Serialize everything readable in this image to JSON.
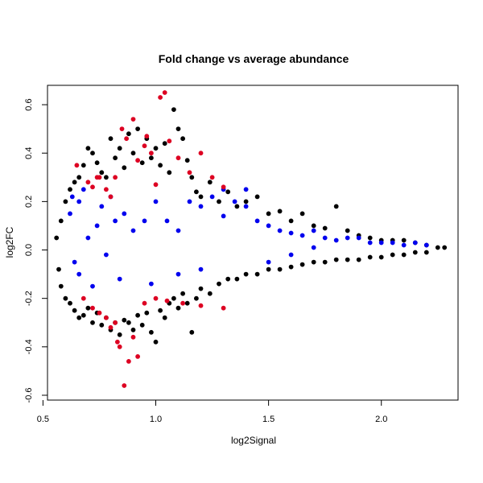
{
  "chart_data": {
    "type": "scatter",
    "title": "Fold change vs average abundance",
    "xlabel": "log2Signal",
    "ylabel": "log2FC",
    "xlim": [
      0.52,
      2.34
    ],
    "ylim": [
      -0.62,
      0.68
    ],
    "x_ticks": [
      0.5,
      1.0,
      1.5,
      2.0
    ],
    "x_tick_labels": [
      "0.5",
      "1.0",
      "1.5",
      "2.0"
    ],
    "y_ticks": [
      -0.6,
      -0.4,
      -0.2,
      0.0,
      0.2,
      0.4,
      0.6
    ],
    "y_tick_labels": [
      "-0.6",
      "-0.4",
      "-0.2",
      "0.0",
      "0.2",
      "0.4",
      "0.6"
    ],
    "grid": false,
    "legend": "none",
    "colors": {
      "black_series": "#000000",
      "blue_series": "#0000ee",
      "red_series": "#dd0022"
    },
    "series": [
      {
        "color": "#000000",
        "points": [
          [
            0.56,
            0.05
          ],
          [
            0.57,
            -0.08
          ],
          [
            0.58,
            0.12
          ],
          [
            0.58,
            -0.15
          ],
          [
            0.6,
            0.2
          ],
          [
            0.6,
            -0.2
          ],
          [
            0.62,
            0.25
          ],
          [
            0.62,
            -0.22
          ],
          [
            0.64,
            0.28
          ],
          [
            0.64,
            -0.25
          ],
          [
            0.66,
            0.3
          ],
          [
            0.66,
            -0.28
          ],
          [
            0.68,
            0.35
          ],
          [
            0.68,
            -0.27
          ],
          [
            0.7,
            0.42
          ],
          [
            0.7,
            -0.24
          ],
          [
            0.72,
            0.4
          ],
          [
            0.72,
            -0.3
          ],
          [
            0.74,
            0.36
          ],
          [
            0.74,
            -0.26
          ],
          [
            0.76,
            0.32
          ],
          [
            0.76,
            -0.31
          ],
          [
            0.78,
            0.3
          ],
          [
            0.78,
            -0.28
          ],
          [
            0.8,
            0.46
          ],
          [
            0.8,
            -0.33
          ],
          [
            0.82,
            0.38
          ],
          [
            0.82,
            -0.3
          ],
          [
            0.84,
            0.42
          ],
          [
            0.84,
            -0.35
          ],
          [
            0.86,
            0.34
          ],
          [
            0.86,
            -0.29
          ],
          [
            0.88,
            0.48
          ],
          [
            0.88,
            -0.3
          ],
          [
            0.9,
            0.4
          ],
          [
            0.9,
            -0.33
          ],
          [
            0.92,
            0.5
          ],
          [
            0.92,
            -0.27
          ],
          [
            0.94,
            0.36
          ],
          [
            0.94,
            -0.31
          ],
          [
            0.96,
            0.46
          ],
          [
            0.96,
            -0.26
          ],
          [
            0.98,
            0.38
          ],
          [
            0.98,
            -0.34
          ],
          [
            1.0,
            0.42
          ],
          [
            1.0,
            -0.38
          ],
          [
            1.02,
            0.35
          ],
          [
            1.02,
            -0.25
          ],
          [
            1.04,
            0.44
          ],
          [
            1.04,
            -0.28
          ],
          [
            1.06,
            0.32
          ],
          [
            1.06,
            -0.22
          ],
          [
            1.08,
            0.58
          ],
          [
            1.08,
            -0.2
          ],
          [
            1.1,
            0.5
          ],
          [
            1.1,
            -0.24
          ],
          [
            1.12,
            0.46
          ],
          [
            1.12,
            -0.18
          ],
          [
            1.14,
            0.37
          ],
          [
            1.14,
            -0.22
          ],
          [
            1.16,
            0.3
          ],
          [
            1.16,
            -0.34
          ],
          [
            1.18,
            0.24
          ],
          [
            1.18,
            -0.2
          ],
          [
            1.2,
            0.22
          ],
          [
            1.2,
            -0.16
          ],
          [
            1.24,
            0.28
          ],
          [
            1.24,
            -0.18
          ],
          [
            1.28,
            0.2
          ],
          [
            1.28,
            -0.14
          ],
          [
            1.32,
            0.24
          ],
          [
            1.32,
            -0.12
          ],
          [
            1.36,
            0.18
          ],
          [
            1.36,
            -0.12
          ],
          [
            1.4,
            0.2
          ],
          [
            1.4,
            -0.1
          ],
          [
            1.45,
            0.22
          ],
          [
            1.45,
            -0.1
          ],
          [
            1.5,
            0.15
          ],
          [
            1.5,
            -0.08
          ],
          [
            1.55,
            0.16
          ],
          [
            1.55,
            -0.08
          ],
          [
            1.6,
            0.12
          ],
          [
            1.6,
            -0.07
          ],
          [
            1.65,
            0.15
          ],
          [
            1.65,
            -0.06
          ],
          [
            1.7,
            0.1
          ],
          [
            1.7,
            -0.05
          ],
          [
            1.75,
            0.09
          ],
          [
            1.75,
            -0.05
          ],
          [
            1.8,
            0.18
          ],
          [
            1.8,
            -0.04
          ],
          [
            1.85,
            0.08
          ],
          [
            1.85,
            -0.04
          ],
          [
            1.9,
            0.06
          ],
          [
            1.9,
            -0.04
          ],
          [
            1.95,
            0.05
          ],
          [
            1.95,
            -0.03
          ],
          [
            2.0,
            0.04
          ],
          [
            2.0,
            -0.03
          ],
          [
            2.05,
            0.04
          ],
          [
            2.05,
            -0.02
          ],
          [
            2.1,
            0.04
          ],
          [
            2.1,
            -0.02
          ],
          [
            2.15,
            0.03
          ],
          [
            2.15,
            -0.01
          ],
          [
            2.2,
            0.02
          ],
          [
            2.2,
            -0.01
          ],
          [
            2.25,
            0.01
          ],
          [
            2.28,
            0.01
          ]
        ]
      },
      {
        "color": "#0000ee",
        "points": [
          [
            0.62,
            0.15
          ],
          [
            0.63,
            0.22
          ],
          [
            0.64,
            -0.05
          ],
          [
            0.66,
            0.2
          ],
          [
            0.66,
            -0.1
          ],
          [
            0.68,
            0.25
          ],
          [
            0.7,
            0.05
          ],
          [
            0.72,
            -0.15
          ],
          [
            0.74,
            0.1
          ],
          [
            0.76,
            0.18
          ],
          [
            0.78,
            -0.02
          ],
          [
            0.8,
            0.22
          ],
          [
            0.82,
            0.12
          ],
          [
            0.84,
            -0.12
          ],
          [
            0.86,
            0.15
          ],
          [
            0.9,
            0.08
          ],
          [
            0.95,
            0.12
          ],
          [
            1.0,
            0.2
          ],
          [
            1.05,
            0.12
          ],
          [
            1.1,
            0.08
          ],
          [
            1.15,
            0.2
          ],
          [
            1.2,
            0.18
          ],
          [
            1.25,
            0.22
          ],
          [
            1.3,
            0.14
          ],
          [
            1.35,
            0.2
          ],
          [
            1.4,
            0.18
          ],
          [
            1.45,
            0.12
          ],
          [
            1.5,
            0.1
          ],
          [
            1.55,
            0.08
          ],
          [
            1.6,
            0.07
          ],
          [
            1.65,
            0.06
          ],
          [
            1.7,
            0.08
          ],
          [
            1.75,
            0.05
          ],
          [
            1.8,
            0.04
          ],
          [
            1.85,
            0.05
          ],
          [
            1.9,
            0.05
          ],
          [
            1.95,
            0.03
          ],
          [
            2.0,
            0.03
          ],
          [
            2.05,
            0.03
          ],
          [
            2.1,
            0.02
          ],
          [
            2.15,
            0.03
          ],
          [
            2.2,
            0.02
          ],
          [
            1.3,
            0.25
          ],
          [
            1.4,
            0.25
          ],
          [
            1.5,
            -0.05
          ],
          [
            1.6,
            -0.02
          ],
          [
            1.7,
            0.01
          ],
          [
            1.2,
            -0.08
          ],
          [
            1.1,
            -0.1
          ],
          [
            0.98,
            -0.14
          ]
        ]
      },
      {
        "color": "#dd0022",
        "points": [
          [
            0.65,
            0.35
          ],
          [
            0.7,
            0.28
          ],
          [
            0.72,
            0.26
          ],
          [
            0.75,
            0.3
          ],
          [
            0.78,
            0.25
          ],
          [
            0.8,
            0.22
          ],
          [
            0.82,
            0.3
          ],
          [
            0.85,
            0.5
          ],
          [
            0.87,
            0.46
          ],
          [
            0.9,
            0.54
          ],
          [
            0.92,
            0.37
          ],
          [
            0.95,
            0.43
          ],
          [
            0.98,
            0.4
          ],
          [
            1.0,
            0.27
          ],
          [
            1.02,
            0.63
          ],
          [
            1.04,
            0.65
          ],
          [
            1.06,
            0.45
          ],
          [
            1.1,
            0.38
          ],
          [
            1.15,
            0.32
          ],
          [
            1.2,
            0.4
          ],
          [
            1.25,
            0.3
          ],
          [
            1.3,
            0.26
          ],
          [
            0.68,
            -0.2
          ],
          [
            0.72,
            -0.24
          ],
          [
            0.75,
            -0.26
          ],
          [
            0.78,
            -0.28
          ],
          [
            0.8,
            -0.32
          ],
          [
            0.82,
            -0.3
          ],
          [
            0.83,
            -0.38
          ],
          [
            0.84,
            -0.4
          ],
          [
            0.86,
            -0.56
          ],
          [
            0.88,
            -0.46
          ],
          [
            0.9,
            -0.36
          ],
          [
            0.92,
            -0.44
          ],
          [
            0.95,
            -0.22
          ],
          [
            1.0,
            -0.2
          ],
          [
            1.05,
            -0.21
          ],
          [
            1.12,
            -0.22
          ],
          [
            1.2,
            -0.23
          ],
          [
            1.3,
            -0.24
          ],
          [
            0.74,
            0.3
          ],
          [
            0.96,
            0.47
          ]
        ]
      }
    ]
  }
}
